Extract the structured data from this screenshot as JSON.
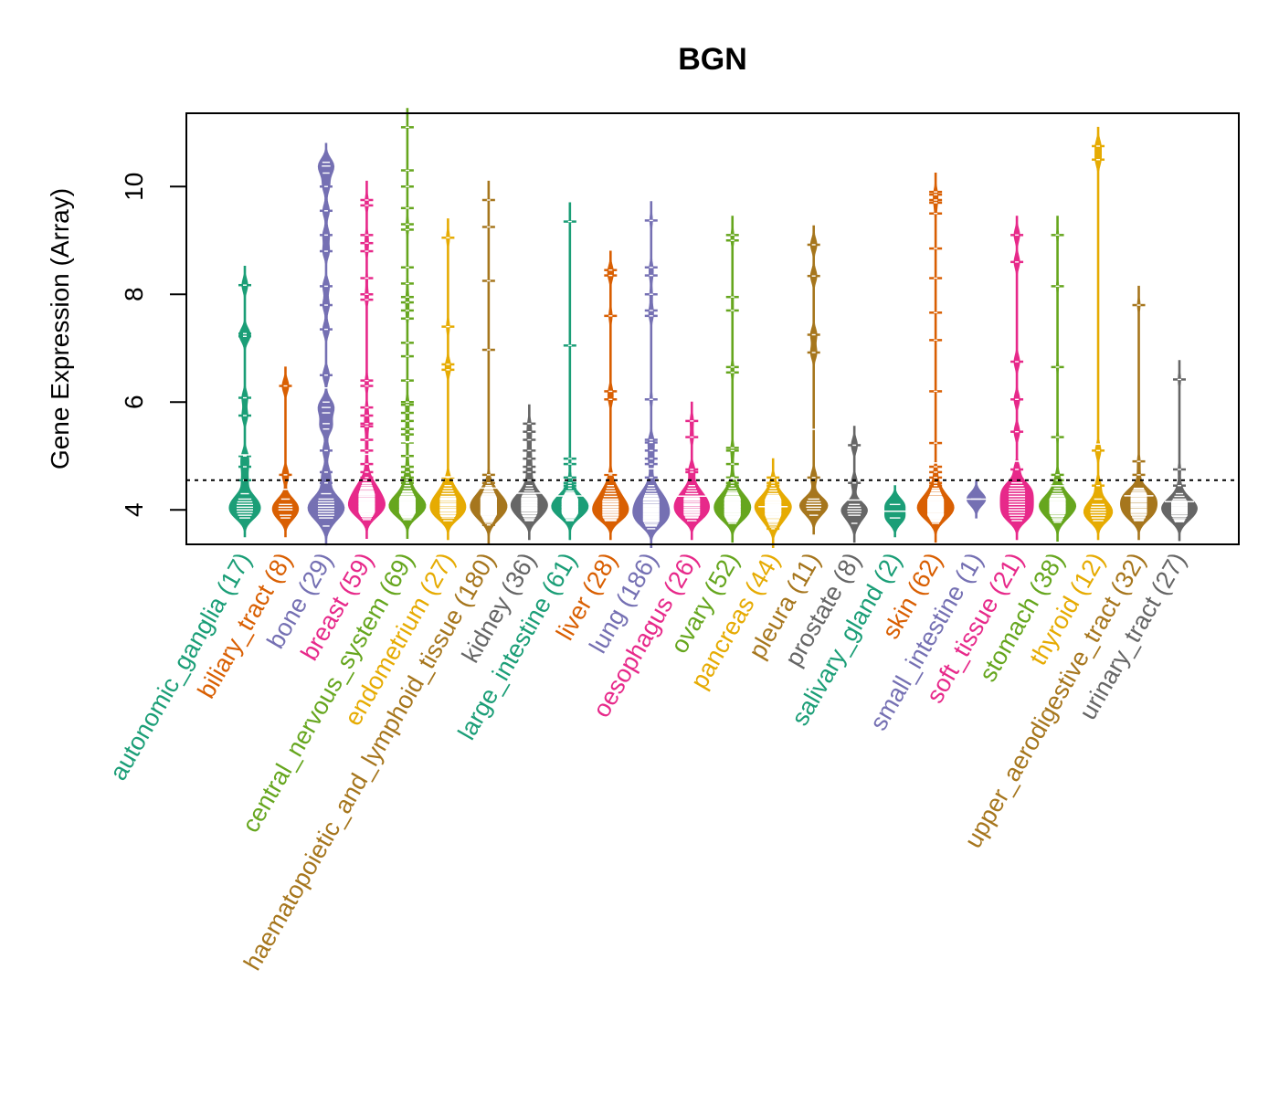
{
  "chart_data": {
    "type": "beanplot",
    "title": "BGN",
    "xlabel": "",
    "ylabel": "Gene Expression (Array)",
    "ylim": [
      3.36,
      11.36
    ],
    "yticks": [
      4,
      6,
      8,
      10
    ],
    "grid": false,
    "legend": "none",
    "reference_line": {
      "value": 4.55,
      "style": "dotted",
      "color": "#000000"
    },
    "palette": [
      "#1B9E77",
      "#D95F02",
      "#7570B3",
      "#E7298A",
      "#66A61E",
      "#E6AB02",
      "#A6761D",
      "#666666"
    ],
    "categories": [
      {
        "name": "autonomic_ganglia",
        "n": 17,
        "label": "autonomic_ganglia (17)",
        "values": [
          8.17,
          7.27,
          7.22,
          6.08,
          5.75,
          5.0,
          4.8,
          4.55,
          4.3,
          4.2,
          4.15,
          4.1,
          4.05,
          4.0,
          3.95,
          3.9,
          3.85
        ]
      },
      {
        "name": "biliary_tract",
        "n": 8,
        "label": "biliary_tract (8)",
        "values": [
          6.3,
          4.65,
          4.2,
          4.1,
          4.05,
          4.0,
          3.9,
          3.85
        ]
      },
      {
        "name": "bone",
        "n": 29,
        "label": "bone (29)",
        "values": [
          10.45,
          10.38,
          10.25,
          10.0,
          9.55,
          9.1,
          8.8,
          8.15,
          7.8,
          7.35,
          6.5,
          6.0,
          5.9,
          5.8,
          5.6,
          5.5,
          5.1,
          4.7,
          4.5,
          4.3,
          4.2,
          4.15,
          4.1,
          4.05,
          4.0,
          3.95,
          3.9,
          3.85,
          3.7
        ]
      },
      {
        "name": "breast",
        "n": 59,
        "label": "breast (59)",
        "values": [
          9.75,
          9.65,
          9.1,
          8.95,
          8.8,
          8.3,
          8.0,
          7.9,
          6.4,
          6.3,
          5.9,
          5.75,
          5.6,
          5.55,
          5.3,
          5.1,
          4.85,
          4.7,
          4.6,
          4.55,
          4.5,
          4.48,
          4.45,
          4.42,
          4.4,
          4.38,
          4.35,
          4.32,
          4.3,
          4.28,
          4.25,
          4.22,
          4.2,
          4.18,
          4.15,
          4.13,
          4.1,
          4.08,
          4.05,
          4.03,
          4.0,
          3.98,
          3.95,
          3.93,
          3.9,
          3.88,
          3.85,
          4.19,
          4.12,
          4.07,
          4.02,
          4.26,
          4.34,
          4.16,
          4.11,
          4.06,
          3.97,
          3.92,
          3.82
        ]
      },
      {
        "name": "central_nervous_system",
        "n": 69,
        "label": "central_nervous_system (69)",
        "values": [
          11.1,
          10.3,
          10.0,
          9.6,
          9.3,
          9.2,
          8.5,
          8.2,
          7.95,
          7.85,
          7.7,
          7.55,
          7.1,
          6.85,
          6.4,
          6.0,
          5.95,
          5.8,
          5.65,
          5.5,
          5.4,
          5.25,
          5.0,
          4.8,
          4.7,
          4.6,
          4.55,
          4.5,
          4.45,
          4.4,
          4.35,
          4.3,
          4.28,
          4.25,
          4.22,
          4.2,
          4.18,
          4.15,
          4.12,
          4.1,
          4.08,
          4.05,
          4.02,
          4.0,
          3.98,
          3.95,
          3.92,
          3.9,
          3.88,
          3.85,
          3.82,
          4.19,
          4.14,
          4.11,
          4.06,
          4.01,
          3.97,
          4.24,
          4.33,
          4.16,
          4.09,
          4.04,
          3.99,
          3.94,
          3.87,
          4.21,
          4.13,
          4.07,
          3.96
        ]
      },
      {
        "name": "endometrium",
        "n": 27,
        "label": "endometrium (27)",
        "values": [
          9.05,
          7.4,
          6.7,
          6.6,
          4.6,
          4.45,
          4.4,
          4.35,
          4.3,
          4.25,
          4.2,
          4.15,
          4.12,
          4.1,
          4.05,
          4.0,
          3.98,
          3.95,
          3.9,
          3.88,
          3.85,
          4.22,
          4.08,
          4.02,
          3.93,
          4.18,
          3.8
        ]
      },
      {
        "name": "haematopoietic_and_lymphoid_tissue",
        "n": 180,
        "label": "haematopoietic_and_lymphoid_tissue (180)",
        "values": [
          9.75,
          9.25,
          8.25,
          6.97,
          4.65,
          4.5,
          4.45,
          4.42,
          4.4,
          4.38,
          4.35,
          4.33,
          4.3,
          4.28,
          4.26,
          4.25,
          4.24,
          4.22,
          4.21,
          4.2,
          4.19,
          4.18,
          4.17,
          4.16,
          4.15,
          4.14,
          4.13,
          4.12,
          4.11,
          4.1,
          4.09,
          4.08,
          4.07,
          4.06,
          4.05,
          4.04,
          4.03,
          4.02,
          4.01,
          4.0,
          3.99,
          3.98,
          3.97,
          3.96,
          3.95,
          3.94,
          3.93,
          3.92,
          3.91,
          3.9,
          3.88,
          3.86,
          3.84,
          3.82,
          3.8,
          3.78,
          3.75,
          3.72
        ],
        "values_note": "remaining samples concentrated in 3.8-4.4"
      },
      {
        "name": "kidney",
        "n": 36,
        "label": "kidney (36)",
        "values": [
          5.6,
          5.45,
          5.3,
          5.1,
          4.95,
          4.8,
          4.7,
          4.55,
          4.45,
          4.4,
          4.35,
          4.3,
          4.27,
          4.25,
          4.22,
          4.2,
          4.17,
          4.15,
          4.12,
          4.1,
          4.08,
          4.05,
          4.03,
          4.0,
          3.98,
          3.95,
          3.93,
          3.9,
          3.88,
          3.85,
          3.82,
          3.8,
          4.18,
          4.13,
          4.07,
          4.02
        ]
      },
      {
        "name": "large_intestine",
        "n": 61,
        "label": "large_intestine (61)",
        "values": [
          9.35,
          7.05,
          4.95,
          4.85,
          4.6,
          4.5,
          4.45,
          4.4,
          4.35,
          4.32,
          4.3,
          4.28,
          4.25,
          4.22,
          4.2,
          4.18,
          4.15,
          4.13,
          4.1,
          4.08,
          4.05,
          4.03,
          4.0,
          3.98,
          3.95,
          3.93,
          3.9,
          3.88,
          3.85,
          3.82,
          3.8,
          4.19,
          4.16,
          4.11,
          4.06,
          4.01,
          3.97,
          4.24,
          4.14,
          4.09,
          4.04,
          3.99,
          3.94,
          3.87,
          4.21,
          4.12,
          4.07,
          4.02,
          3.96,
          3.91,
          4.17,
          4.1,
          4.0,
          3.92,
          4.26,
          4.23,
          4.06,
          3.98,
          3.89,
          4.15,
          4.05
        ]
      },
      {
        "name": "liver",
        "n": 28,
        "label": "liver (28)",
        "values": [
          8.45,
          8.35,
          7.6,
          6.2,
          6.05,
          4.65,
          4.45,
          4.4,
          4.35,
          4.3,
          4.25,
          4.2,
          4.17,
          4.15,
          4.12,
          4.1,
          4.07,
          4.05,
          4.02,
          4.0,
          3.97,
          3.95,
          3.92,
          3.9,
          3.87,
          3.85,
          3.82,
          3.8
        ]
      },
      {
        "name": "lung",
        "n": 186,
        "label": "lung (186)",
        "values": [
          9.37,
          8.5,
          8.35,
          8.0,
          7.7,
          7.6,
          6.05,
          5.3,
          5.25,
          5.1,
          4.95,
          4.85,
          4.6,
          4.45,
          4.4,
          4.35,
          4.3,
          4.27,
          4.25,
          4.22,
          4.2,
          4.18,
          4.15,
          4.13,
          4.1,
          4.08,
          4.06,
          4.04,
          4.02,
          4.0,
          3.98,
          3.96,
          3.94,
          3.92,
          3.9,
          3.88,
          3.86,
          3.84,
          3.82,
          3.8,
          3.78,
          3.75,
          3.72,
          3.7,
          3.65
        ],
        "values_note": "remaining samples concentrated in 3.7-4.4"
      },
      {
        "name": "oesophagus",
        "n": 26,
        "label": "oesophagus (26)",
        "values": [
          5.65,
          5.35,
          4.75,
          4.7,
          4.45,
          4.4,
          4.35,
          4.3,
          4.25,
          4.22,
          4.2,
          4.18,
          4.15,
          4.12,
          4.1,
          4.08,
          4.05,
          4.02,
          4.0,
          3.97,
          3.95,
          3.92,
          3.9,
          3.87,
          3.85,
          3.8
        ]
      },
      {
        "name": "ovary",
        "n": 52,
        "label": "ovary (52)",
        "values": [
          9.1,
          9.0,
          7.95,
          7.7,
          6.65,
          6.55,
          5.15,
          5.1,
          4.85,
          4.6,
          4.5,
          4.45,
          4.4,
          4.35,
          4.32,
          4.3,
          4.28,
          4.25,
          4.22,
          4.2,
          4.18,
          4.16,
          4.14,
          4.12,
          4.1,
          4.08,
          4.06,
          4.04,
          4.02,
          4.0,
          3.98,
          3.96,
          3.94,
          3.92,
          3.9,
          3.88,
          3.86,
          3.84,
          3.82,
          3.8,
          3.78,
          3.75,
          4.19,
          4.13,
          4.07,
          4.01,
          3.97,
          4.23,
          4.11,
          4.05,
          3.93,
          3.87
        ]
      },
      {
        "name": "pancreas",
        "n": 44,
        "label": "pancreas (44)",
        "values": [
          4.6,
          4.5,
          4.45,
          4.4,
          4.35,
          4.3,
          4.27,
          4.25,
          4.22,
          4.2,
          4.18,
          4.15,
          4.12,
          4.1,
          4.08,
          4.05,
          4.03,
          4.0,
          3.98,
          3.95,
          3.93,
          3.9,
          3.88,
          3.85,
          3.82,
          3.8,
          3.78,
          3.75,
          3.72,
          3.68,
          3.65,
          4.17,
          4.13,
          4.07,
          4.02,
          3.97,
          4.09,
          4.04,
          3.99,
          3.92,
          4.24,
          4.14,
          4.06,
          3.86
        ]
      },
      {
        "name": "pleura",
        "n": 11,
        "label": "pleura (11)",
        "values": [
          8.92,
          8.34,
          7.25,
          6.92,
          4.6,
          4.2,
          4.15,
          4.1,
          4.05,
          4.0,
          3.9
        ]
      },
      {
        "name": "prostate",
        "n": 8,
        "label": "prostate (8)",
        "values": [
          5.2,
          4.5,
          4.1,
          4.05,
          4.0,
          3.95,
          3.9,
          3.75
        ]
      },
      {
        "name": "salivary_gland",
        "n": 2,
        "label": "salivary_gland (2)",
        "values": [
          4.1,
          3.85
        ]
      },
      {
        "name": "skin",
        "n": 62,
        "label": "skin (62)",
        "values": [
          9.9,
          9.85,
          9.75,
          9.7,
          9.5,
          8.85,
          8.3,
          7.66,
          7.15,
          6.2,
          5.24,
          4.8,
          4.7,
          4.6,
          4.5,
          4.45,
          4.4,
          4.37,
          4.35,
          4.32,
          4.3,
          4.28,
          4.25,
          4.22,
          4.2,
          4.18,
          4.16,
          4.14,
          4.12,
          4.1,
          4.08,
          4.06,
          4.04,
          4.02,
          4.0,
          3.98,
          3.96,
          3.94,
          3.92,
          3.9,
          3.88,
          3.86,
          3.84,
          3.82,
          3.8,
          3.78,
          3.75,
          4.19,
          4.13,
          4.07,
          4.01,
          3.97,
          4.23,
          4.11,
          4.05,
          3.93,
          4.15,
          4.09,
          3.99,
          3.89,
          4.03,
          3.91
        ]
      },
      {
        "name": "small_intestine",
        "n": 1,
        "label": "small_intestine (1)",
        "values": [
          4.2
        ]
      },
      {
        "name": "soft_tissue",
        "n": 21,
        "label": "soft_tissue (21)",
        "values": [
          9.1,
          8.6,
          6.75,
          6.05,
          5.45,
          4.75,
          4.5,
          4.45,
          4.4,
          4.35,
          4.3,
          4.25,
          4.2,
          4.15,
          4.1,
          4.05,
          4.0,
          3.95,
          3.9,
          3.85,
          3.8
        ]
      },
      {
        "name": "stomach",
        "n": 38,
        "label": "stomach (38)",
        "values": [
          9.1,
          8.15,
          6.65,
          5.35,
          4.65,
          4.55,
          4.45,
          4.4,
          4.35,
          4.3,
          4.27,
          4.25,
          4.22,
          4.2,
          4.17,
          4.15,
          4.12,
          4.1,
          4.08,
          4.05,
          4.03,
          4.0,
          3.98,
          3.95,
          3.93,
          3.9,
          3.88,
          3.85,
          3.82,
          3.8,
          3.77,
          4.18,
          4.13,
          4.07,
          4.02,
          3.97,
          4.11,
          4.06
        ]
      },
      {
        "name": "thyroid",
        "n": 12,
        "label": "thyroid (12)",
        "values": [
          10.75,
          10.5,
          5.1,
          4.45,
          4.2,
          4.1,
          4.05,
          4.0,
          3.95,
          3.9,
          3.85,
          3.8
        ]
      },
      {
        "name": "upper_aerodigestive_tract",
        "n": 32,
        "label": "upper_aerodigestive_tract (32)",
        "values": [
          7.8,
          4.9,
          4.65,
          4.4,
          4.38,
          4.35,
          4.32,
          4.3,
          4.28,
          4.25,
          4.22,
          4.2,
          4.18,
          4.15,
          4.12,
          4.1,
          4.08,
          4.05,
          4.02,
          4.0,
          3.97,
          3.95,
          3.92,
          3.9,
          3.87,
          3.85,
          3.82,
          3.8,
          4.17,
          4.07,
          3.98,
          4.26
        ]
      },
      {
        "name": "urinary_tract",
        "n": 27,
        "label": "urinary_tract (27)",
        "values": [
          6.42,
          4.75,
          4.45,
          4.3,
          4.25,
          4.2,
          4.17,
          4.15,
          4.12,
          4.1,
          4.08,
          4.05,
          4.03,
          4.0,
          3.98,
          3.95,
          3.93,
          3.9,
          3.88,
          3.85,
          3.82,
          3.8,
          3.78,
          4.13,
          4.07,
          4.02,
          3.96
        ]
      }
    ]
  }
}
